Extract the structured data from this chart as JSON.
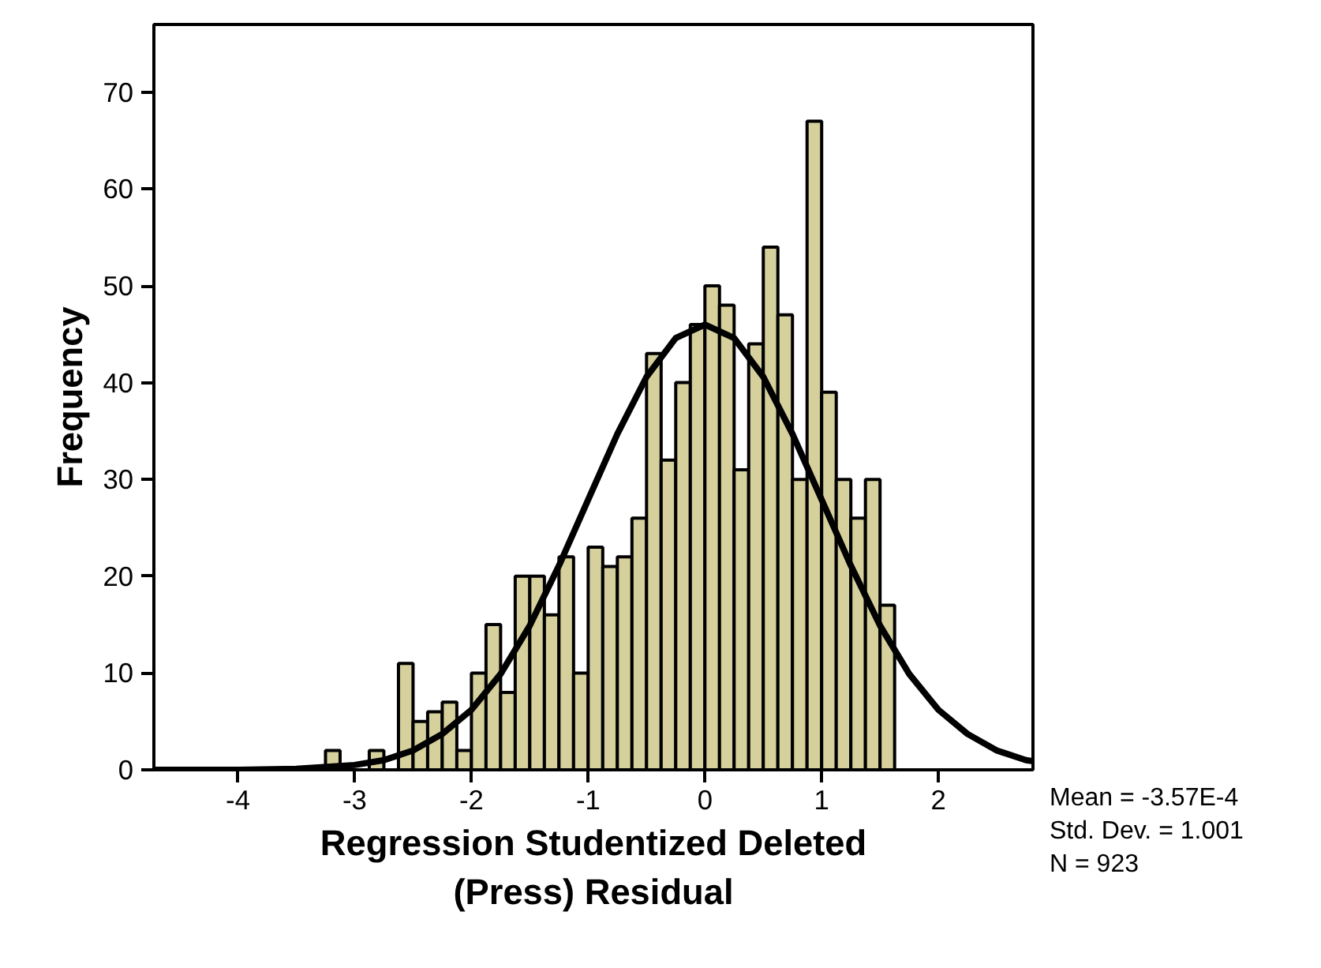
{
  "chart_data": {
    "type": "histogram",
    "xlabel": "Regression Studentized Deleted\n(Press) Residual",
    "ylabel": "Frequency",
    "bins": [
      -3.25,
      -3.125,
      -3.0,
      -2.875,
      -2.75,
      -2.625,
      -2.5,
      -2.375,
      -2.25,
      -2.125,
      -2.0,
      -1.875,
      -1.75,
      -1.625,
      -1.5,
      -1.375,
      -1.25,
      -1.125,
      -1.0,
      -0.875,
      -0.75,
      -0.625,
      -0.5,
      -0.375,
      -0.25,
      -0.125,
      0.0,
      0.125,
      0.25,
      0.375,
      0.5,
      0.625,
      0.75,
      0.875,
      1.0,
      1.125,
      1.25,
      1.375,
      1.5,
      1.625
    ],
    "values": [
      2,
      0,
      null,
      2,
      0,
      11,
      5,
      6,
      7,
      2,
      10,
      15,
      8,
      20,
      20,
      16,
      22,
      10,
      23,
      21,
      22,
      26,
      43,
      32,
      40,
      46,
      50,
      48,
      31,
      44,
      54,
      47,
      30,
      67,
      39,
      30,
      26,
      30,
      17
    ],
    "color": "#d6d09c",
    "series": [
      {
        "type": "line",
        "color": "#000000",
        "x": [
          -4.72,
          -4.0,
          -3.5,
          -3.0,
          -2.75,
          -2.5,
          -2.25,
          -2.0,
          -1.75,
          -1.5,
          -1.25,
          -1.0,
          -0.75,
          -0.5,
          -0.25,
          0.0,
          0.25,
          0.5,
          0.75,
          1.0,
          1.25,
          1.5,
          1.75,
          2.0,
          2.25,
          2.5,
          2.75,
          2.81
        ],
        "values": [
          0.0,
          0.0,
          0.1,
          0.5,
          1.0,
          2.0,
          3.7,
          6.2,
          9.9,
          14.9,
          21.1,
          27.9,
          34.7,
          40.6,
          44.6,
          46.0,
          44.6,
          40.6,
          34.7,
          27.9,
          21.1,
          14.9,
          9.9,
          6.2,
          3.7,
          2.0,
          1.0,
          0.9
        ]
      }
    ],
    "xlim": [
      -4.72,
      2.81
    ],
    "ylim": [
      0,
      77
    ],
    "xticks": [
      -4,
      -3,
      -2,
      -1,
      0,
      1,
      2
    ],
    "yticks": [
      0,
      10,
      20,
      30,
      40,
      50,
      60,
      70
    ],
    "annotations": [
      "Mean = -3.57E-4",
      "Std. Dev. = 1.001",
      "N = 923"
    ]
  }
}
